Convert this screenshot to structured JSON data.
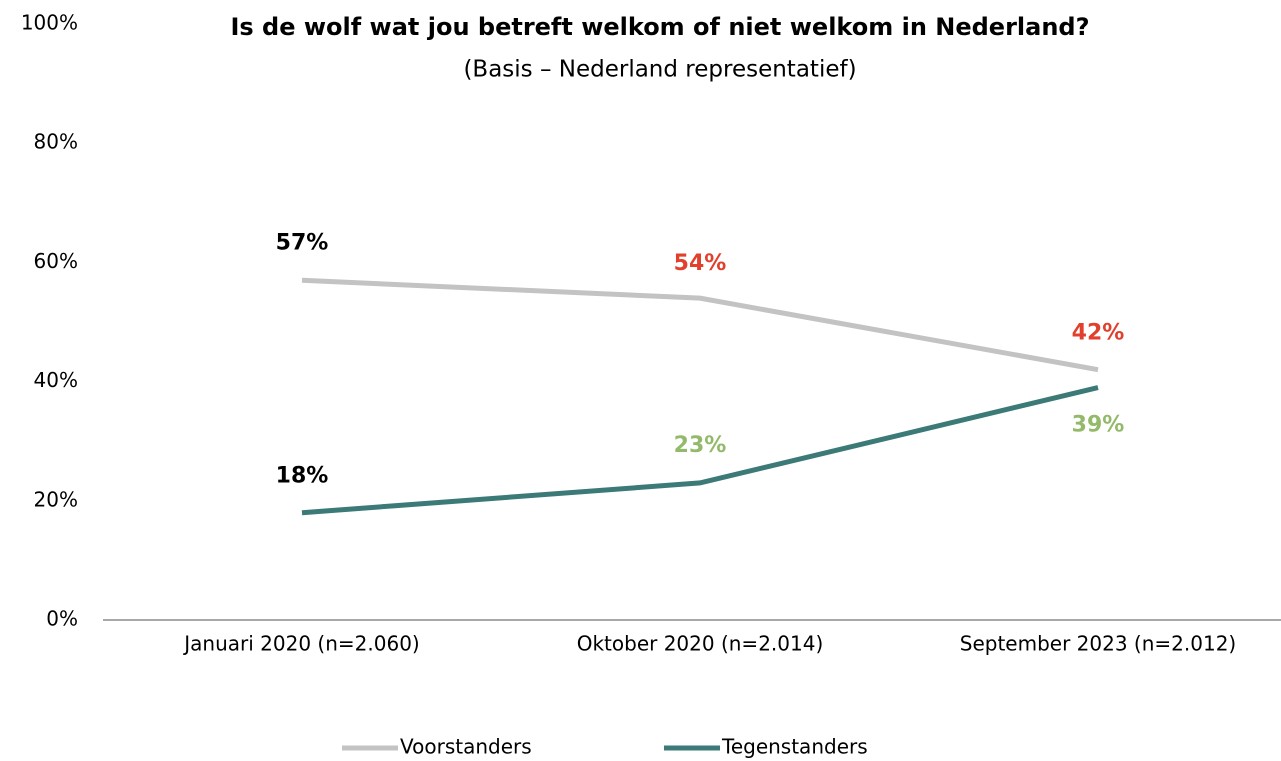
{
  "chart_data": {
    "type": "line",
    "title": "Is de wolf wat jou betreft welkom of niet welkom in Nederland?",
    "subtitle": "(Basis – Nederland representatief)",
    "categories": [
      "Januari 2020 (n=2.060)",
      "Oktober 2020 (n=2.014)",
      "September 2023 (n=2.012)"
    ],
    "series": [
      {
        "name": "Voorstanders",
        "color": "#c3c3c3",
        "values": [
          57,
          54,
          42
        ],
        "value_labels": [
          "57%",
          "54%",
          "42%"
        ],
        "label_colors": [
          "#000000",
          "#e0402c",
          "#e0402c"
        ]
      },
      {
        "name": "Tegenstanders",
        "color": "#3c7a78",
        "values": [
          18,
          23,
          39
        ],
        "value_labels": [
          "18%",
          "23%",
          "39%"
        ],
        "label_colors": [
          "#000000",
          "#93b96a",
          "#93b96a"
        ]
      }
    ],
    "ylim": [
      0,
      100
    ],
    "yticks": [
      {
        "value": 0,
        "label": "0%"
      },
      {
        "value": 20,
        "label": "20%"
      },
      {
        "value": 40,
        "label": "40%"
      },
      {
        "value": 60,
        "label": "60%"
      },
      {
        "value": 80,
        "label": "80%"
      },
      {
        "value": 100,
        "label": "100%"
      }
    ],
    "grid": false,
    "legend": "bottom"
  }
}
